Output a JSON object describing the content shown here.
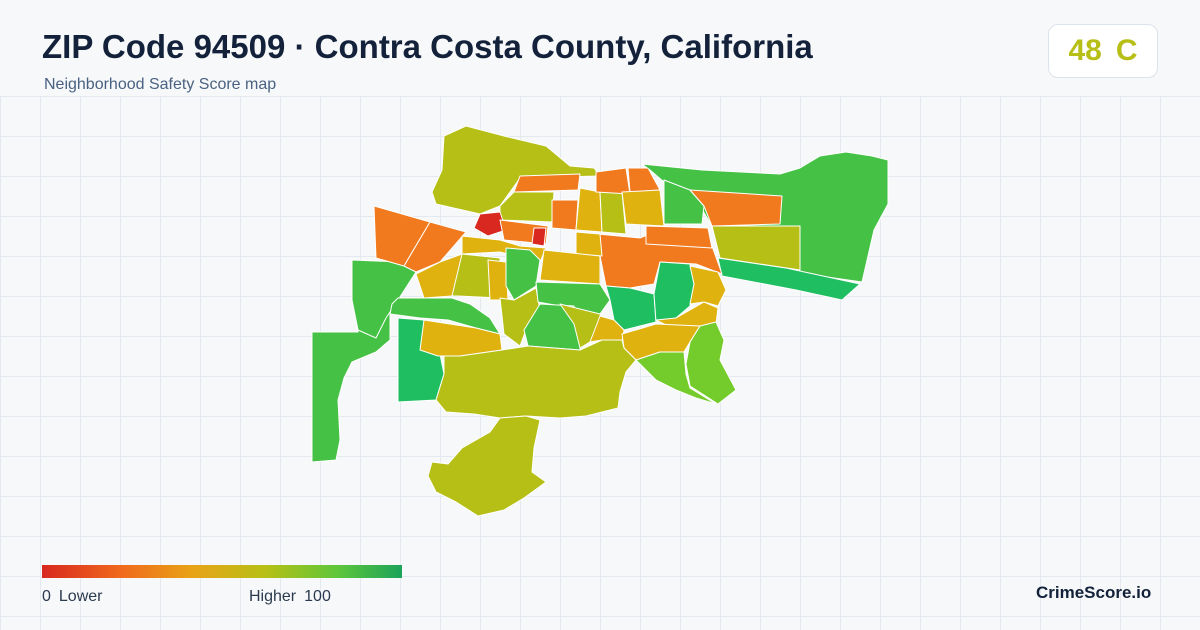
{
  "header": {
    "title": "ZIP Code 94509 · Contra Costa County, California",
    "subtitle": "Neighborhood Safety Score map"
  },
  "score": {
    "value": "48",
    "grade": "C",
    "color": "#b7bf17"
  },
  "legend": {
    "min_value": "0",
    "min_label": "Lower",
    "max_label": "Higher",
    "max_value": "100",
    "colors": [
      "#d8281f",
      "#f06a1c",
      "#e8a317",
      "#b7c015",
      "#5ec63a",
      "#1ca35a"
    ]
  },
  "brand": {
    "name": "CrimeScore.io"
  },
  "palette": {
    "red": "#d8281f",
    "orange": "#f07a1d",
    "amber": "#dfb20f",
    "olive": "#b6bf16",
    "yellowgreen": "#a3c51d",
    "lightgreen": "#74cc2c",
    "green": "#45c245",
    "emerald": "#1fbf61"
  }
}
